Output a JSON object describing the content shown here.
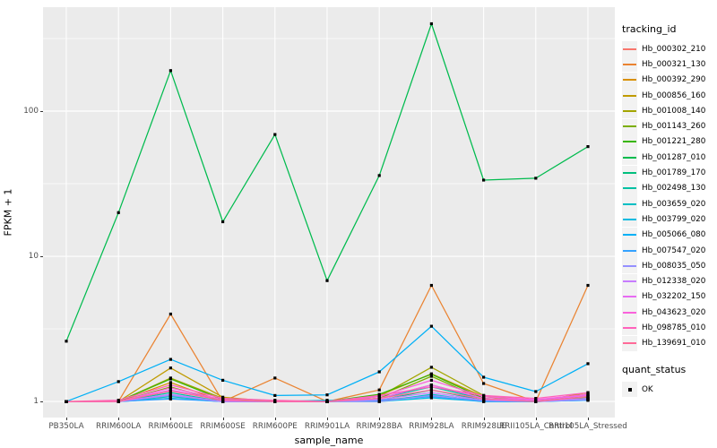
{
  "figure": {
    "background": "#ffffff",
    "panel_background": "#ebebeb",
    "grid_color": "#ffffff",
    "axis_text_color": "#4d4d4d",
    "point_color": "#000000"
  },
  "axes": {
    "x_title": "sample_name",
    "y_title": "FPKM + 1",
    "y_tick_labels": [
      "1",
      "10",
      "100"
    ]
  },
  "legend": {
    "tracking_title": "tracking_id",
    "quant_title": "quant_status",
    "quant_items": [
      {
        "label": "OK",
        "symbol": "black-square",
        "color": "#000000"
      }
    ]
  },
  "chart_data": {
    "type": "line",
    "title": "",
    "xlabel": "sample_name",
    "ylabel": "FPKM + 1",
    "x_type": "categorical",
    "y_scale": "log10",
    "ylim": [
      0.775,
      520
    ],
    "y_major_ticks": [
      1,
      10,
      100
    ],
    "y_minor_ticks": [
      3.162,
      31.62,
      316.2
    ],
    "grid": true,
    "legend_position": "right",
    "point_shape": "filled-square",
    "categories": [
      "PB350LA",
      "RRIM600LA",
      "RRIM600LE",
      "RRIM600SE",
      "RRIM600PE",
      "RRIM901LA",
      "RRIM928BA",
      "RRIM928LA",
      "RRIM928LE",
      "RRII105LA_Control",
      "RRII105LA_Stressed"
    ],
    "series": [
      {
        "name": "Hb_000302_210",
        "color": "#F8766D",
        "values": [
          1.0,
          1.0,
          1.05,
          1.0,
          1.0,
          1.0,
          1.02,
          1.1,
          1.02,
          1.0,
          1.05
        ]
      },
      {
        "name": "Hb_000321_130",
        "color": "#EA8331",
        "values": [
          1.0,
          1.0,
          4.0,
          1.0,
          1.45,
          1.0,
          1.2,
          6.3,
          1.33,
          1.0,
          6.3
        ]
      },
      {
        "name": "Hb_000392_290",
        "color": "#D89000",
        "values": [
          1.0,
          1.0,
          1.35,
          1.0,
          1.0,
          1.0,
          1.05,
          1.3,
          1.05,
          1.0,
          1.1
        ]
      },
      {
        "name": "Hb_000856_160",
        "color": "#C09B00",
        "values": [
          1.0,
          1.0,
          1.7,
          1.07,
          1.0,
          1.0,
          1.1,
          1.55,
          1.08,
          1.0,
          1.15
        ]
      },
      {
        "name": "Hb_001008_140",
        "color": "#A3A500",
        "values": [
          1.0,
          1.0,
          1.45,
          1.05,
          1.0,
          1.0,
          1.08,
          1.72,
          1.1,
          1.02,
          1.12
        ]
      },
      {
        "name": "Hb_001143_260",
        "color": "#7CAE00",
        "values": [
          1.0,
          1.0,
          1.26,
          1.0,
          1.0,
          1.0,
          1.05,
          1.49,
          1.03,
          1.0,
          1.06
        ]
      },
      {
        "name": "Hb_001221_280",
        "color": "#39B600",
        "values": [
          1.0,
          1.0,
          1.43,
          1.03,
          1.0,
          1.0,
          1.12,
          1.54,
          1.05,
          1.0,
          1.08
        ]
      },
      {
        "name": "Hb_001287_010",
        "color": "#00BB4E",
        "values": [
          2.6,
          20.0,
          190.0,
          17.3,
          69.0,
          6.8,
          36.0,
          400.0,
          33.5,
          34.5,
          57.0
        ]
      },
      {
        "name": "Hb_001789_170",
        "color": "#00BF7D",
        "values": [
          1.0,
          1.0,
          1.1,
          1.0,
          1.0,
          1.0,
          1.02,
          1.2,
          1.02,
          1.0,
          1.04
        ]
      },
      {
        "name": "Hb_002498_130",
        "color": "#00C1A3",
        "values": [
          1.0,
          1.0,
          1.15,
          1.0,
          1.0,
          1.0,
          1.05,
          1.26,
          1.04,
          1.0,
          1.05
        ]
      },
      {
        "name": "Hb_003659_020",
        "color": "#00BFC4",
        "values": [
          1.0,
          1.0,
          1.08,
          1.0,
          1.0,
          1.0,
          1.0,
          1.12,
          1.0,
          1.0,
          1.03
        ]
      },
      {
        "name": "Hb_003799_020",
        "color": "#00BAE0",
        "values": [
          1.0,
          1.0,
          1.05,
          1.0,
          1.0,
          1.02,
          1.0,
          1.06,
          1.0,
          1.0,
          1.02
        ]
      },
      {
        "name": "Hb_005066_080",
        "color": "#00B0F6",
        "values": [
          1.0,
          1.37,
          1.95,
          1.4,
          1.1,
          1.11,
          1.6,
          3.3,
          1.47,
          1.17,
          1.82
        ]
      },
      {
        "name": "Hb_007547_020",
        "color": "#35A2FF",
        "values": [
          1.0,
          1.0,
          1.04,
          1.0,
          1.0,
          1.0,
          1.02,
          1.08,
          1.0,
          1.0,
          1.02
        ]
      },
      {
        "name": "Hb_008035_050",
        "color": "#9590FF",
        "values": [
          1.0,
          1.0,
          1.1,
          1.0,
          1.0,
          1.0,
          1.0,
          1.1,
          1.02,
          1.0,
          1.03
        ]
      },
      {
        "name": "Hb_012338_020",
        "color": "#C77CFF",
        "values": [
          1.0,
          1.0,
          1.12,
          1.0,
          1.0,
          1.0,
          1.03,
          1.15,
          1.02,
          1.0,
          1.05
        ]
      },
      {
        "name": "Hb_032202_150",
        "color": "#E76BF3",
        "values": [
          1.0,
          1.0,
          1.2,
          1.02,
          1.0,
          1.0,
          1.05,
          1.3,
          1.05,
          1.02,
          1.1
        ]
      },
      {
        "name": "Hb_043623_020",
        "color": "#FA62DB",
        "values": [
          1.0,
          1.0,
          1.24,
          1.03,
          1.0,
          1.0,
          1.08,
          1.4,
          1.08,
          1.03,
          1.12
        ]
      },
      {
        "name": "Hb_098785_010",
        "color": "#FF62BC",
        "values": [
          1.0,
          1.02,
          1.3,
          1.05,
          1.02,
          1.0,
          1.1,
          1.26,
          1.1,
          1.05,
          1.15
        ]
      },
      {
        "name": "Hb_139691_010",
        "color": "#FF6A98",
        "values": [
          1.0,
          1.0,
          1.18,
          1.02,
          1.0,
          1.0,
          1.05,
          1.2,
          1.04,
          1.0,
          1.08
        ]
      }
    ]
  }
}
